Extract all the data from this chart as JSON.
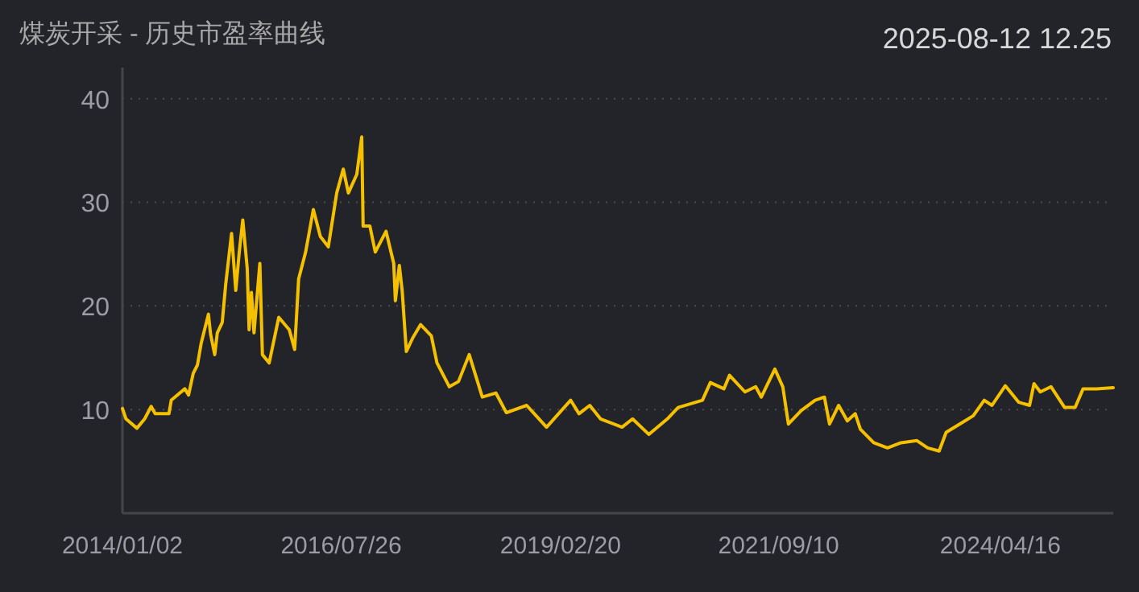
{
  "chart_data": {
    "type": "line",
    "title": "煤炭开采 - 历史市盈率曲线",
    "annotations": [
      "2025-08-12 12.25"
    ],
    "x": [
      "2014-01-02",
      "2014-01-17",
      "2014-03-05",
      "2014-04-07",
      "2014-05-05",
      "2014-05-22",
      "2014-07-20",
      "2014-07-30",
      "2014-09-26",
      "2014-10-12",
      "2014-11-01",
      "2014-11-19",
      "2014-12-05",
      "2015-01-05",
      "2015-01-14",
      "2015-02-01",
      "2015-02-12",
      "2015-03-05",
      "2015-03-20",
      "2015-04-14",
      "2015-05-02",
      "2015-05-17",
      "2015-06-01",
      "2015-06-20",
      "2015-06-28",
      "2015-07-08",
      "2015-07-19",
      "2015-08-13",
      "2015-08-24",
      "2015-09-22",
      "2015-11-02",
      "2015-12-17",
      "2016-01-09",
      "2016-01-26",
      "2016-02-25",
      "2016-03-29",
      "2016-04-28",
      "2016-06-01",
      "2016-07-07",
      "2016-08-04",
      "2016-08-26",
      "2016-10-01",
      "2016-10-22",
      "2016-10-28",
      "2016-11-26",
      "2016-12-19",
      "2017-02-03",
      "2017-03-08",
      "2017-03-15",
      "2017-04-01",
      "2017-04-13",
      "2017-05-01",
      "2017-05-28",
      "2017-07-01",
      "2017-08-16",
      "2017-09-09",
      "2017-11-01",
      "2017-12-10",
      "2018-01-25",
      "2018-03-22",
      "2018-05-19",
      "2018-07-03",
      "2018-09-28",
      "2018-12-22",
      "2019-04-04",
      "2019-05-10",
      "2019-06-25",
      "2019-08-10",
      "2019-11-10",
      "2019-12-25",
      "2020-03-04",
      "2020-05-22",
      "2020-07-07",
      "2020-10-19",
      "2020-11-22",
      "2021-01-19",
      "2021-02-12",
      "2021-04-19",
      "2021-06-04",
      "2021-06-28",
      "2021-08-25",
      "2021-09-28",
      "2021-10-22",
      "2021-12-16",
      "2022-02-13",
      "2022-03-25",
      "2022-04-16",
      "2022-05-25",
      "2022-07-01",
      "2022-08-04",
      "2022-08-26",
      "2022-10-22",
      "2022-12-20",
      "2023-02-16",
      "2023-04-25",
      "2023-06-10",
      "2023-07-29",
      "2023-08-28",
      "2023-10-25",
      "2023-12-22",
      "2024-02-07",
      "2024-03-11",
      "2024-05-07",
      "2024-07-04",
      "2024-08-19",
      "2024-09-07",
      "2024-10-04",
      "2024-11-19",
      "2025-01-16",
      "2025-03-02",
      "2025-04-05",
      "2025-06-01",
      "2025-08-12"
    ],
    "series": [
      {
        "color": "#f5c000",
        "values": [
          10.1,
          9.1,
          8.2,
          9.1,
          10.3,
          9.6,
          9.6,
          10.9,
          12.0,
          11.4,
          13.5,
          14.3,
          16.4,
          19.2,
          17.3,
          15.3,
          17.4,
          18.4,
          22.1,
          27.0,
          21.5,
          25.2,
          28.3,
          23.6,
          17.7,
          21.3,
          17.4,
          24.1,
          15.3,
          14.5,
          18.9,
          17.7,
          15.8,
          22.6,
          25.2,
          29.3,
          26.7,
          25.7,
          30.9,
          33.2,
          30.9,
          32.7,
          36.3,
          27.7,
          27.7,
          25.2,
          27.2,
          24.1,
          20.5,
          23.9,
          21.5,
          15.6,
          16.9,
          18.2,
          17.1,
          14.5,
          12.2,
          12.7,
          15.3,
          11.2,
          11.6,
          9.7,
          10.4,
          8.3,
          10.9,
          9.6,
          10.4,
          9.1,
          8.3,
          9.1,
          7.6,
          9.1,
          10.2,
          10.9,
          12.6,
          12.0,
          13.3,
          11.7,
          12.2,
          11.2,
          13.9,
          12.2,
          8.6,
          9.9,
          10.9,
          11.2,
          8.6,
          10.4,
          8.9,
          9.6,
          8.1,
          6.8,
          6.3,
          6.8,
          7.0,
          6.3,
          6.0,
          7.8,
          8.6,
          9.4,
          10.9,
          10.4,
          12.3,
          10.7,
          10.4,
          12.5,
          11.7,
          12.2,
          10.2,
          10.2,
          12.0,
          12.0,
          12.1
        ]
      }
    ],
    "xlim": [
      "2014-01-02",
      "2025-08-12"
    ],
    "ylim": [
      0,
      43
    ],
    "xticks": [
      {
        "value": "2014-01-02",
        "label": "2014/01/02"
      },
      {
        "value": "2016-07-26",
        "label": "2016/07/26"
      },
      {
        "value": "2019-02-20",
        "label": "2019/02/20"
      },
      {
        "value": "2021-09-10",
        "label": "2021/09/10"
      },
      {
        "value": "2024-04-16",
        "label": "2024/04/16"
      }
    ],
    "yticks": [
      10,
      20,
      30,
      40
    ],
    "grid": "y"
  }
}
